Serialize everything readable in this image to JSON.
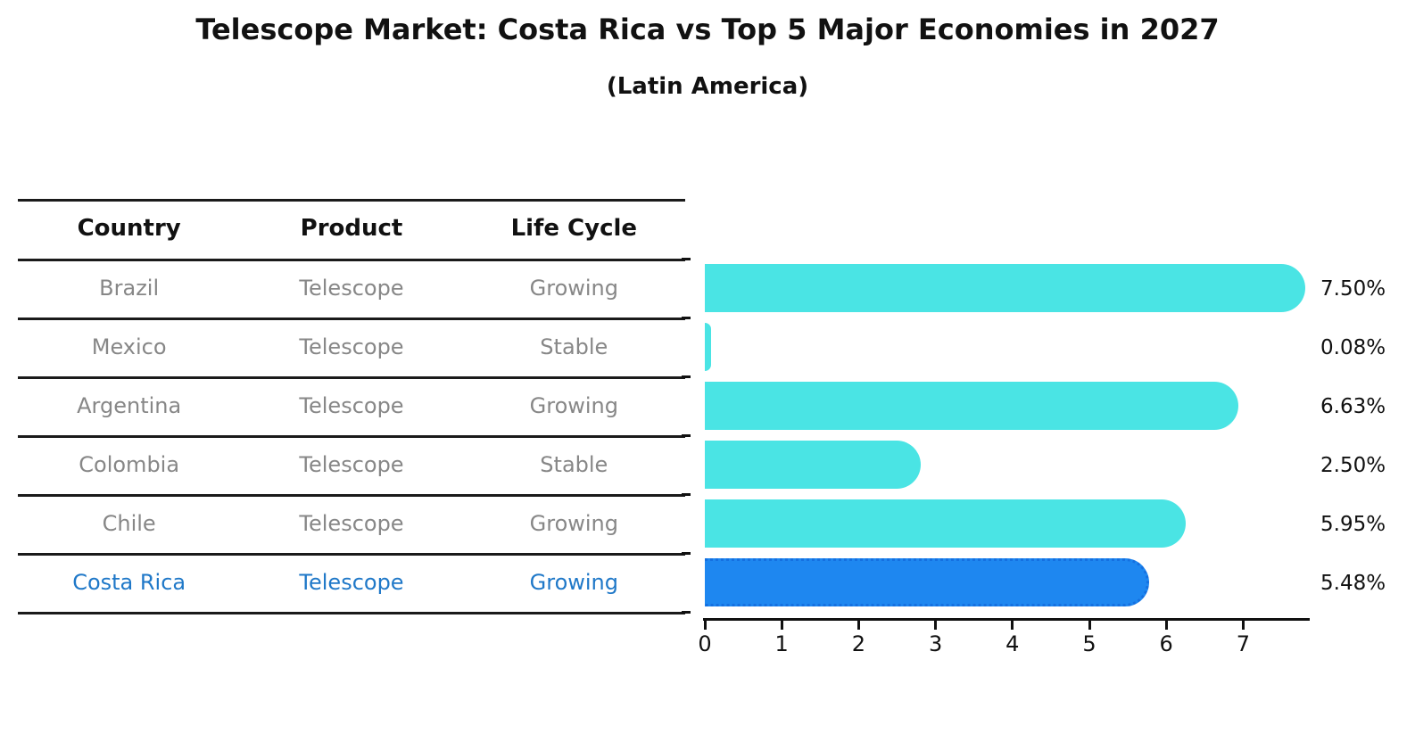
{
  "title": "Telescope Market: Costa Rica vs Top 5 Major Economies in 2027",
  "subtitle": "(Latin America)",
  "table": {
    "headers": [
      "Country",
      "Product",
      "Life Cycle"
    ],
    "rows": [
      {
        "country": "Brazil",
        "product": "Telescope",
        "life_cycle": "Growing",
        "highlighted": false
      },
      {
        "country": "Mexico",
        "product": "Telescope",
        "life_cycle": "Stable",
        "highlighted": false
      },
      {
        "country": "Argentina",
        "product": "Telescope",
        "life_cycle": "Growing",
        "highlighted": false
      },
      {
        "country": "Colombia",
        "product": "Telescope",
        "life_cycle": "Stable",
        "highlighted": false
      },
      {
        "country": "Chile",
        "product": "Telescope",
        "life_cycle": "Growing",
        "highlighted": false
      },
      {
        "country": "Costa Rica",
        "product": "Telescope",
        "life_cycle": "Growing",
        "highlighted": true
      }
    ]
  },
  "chart_data": {
    "type": "bar",
    "orientation": "horizontal",
    "title": "Telescope Market: Costa Rica vs Top 5 Major Economies in 2027",
    "subtitle": "(Latin America)",
    "categories": [
      "Brazil",
      "Mexico",
      "Argentina",
      "Colombia",
      "Chile",
      "Costa Rica"
    ],
    "values": [
      7.5,
      0.08,
      6.63,
      2.5,
      5.95,
      5.48
    ],
    "value_labels": [
      "7.50%",
      "0.08%",
      "6.63%",
      "2.50%",
      "5.95%",
      "5.48%"
    ],
    "xlabel": "",
    "ylabel": "",
    "xticks": [
      0,
      1,
      2,
      3,
      4,
      5,
      6,
      7
    ],
    "xlim": [
      0,
      7.9
    ],
    "grid": false,
    "legend": false,
    "bar_color": "#4ae4e4",
    "highlight_color": "#1e87f0",
    "highlight_index": 5,
    "highlight_style": "dotted-border"
  },
  "colors": {
    "background": "#ffffff",
    "text": "#111111",
    "muted_text": "#878787",
    "highlight_text": "#1f78c8",
    "bar": "#4ae4e4",
    "highlight_bar": "#1e87f0"
  }
}
